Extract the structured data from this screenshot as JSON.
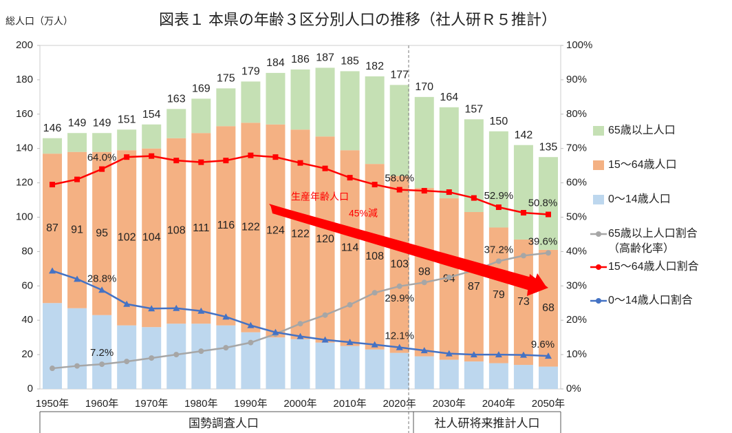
{
  "chart_data": {
    "type": "bar",
    "title": "図表１ 本県の年齢３区分別人口の推移（社人研Ｒ５推計）",
    "y_axis_label": "総人口（万人）",
    "categories": [
      "1950年",
      null,
      "1960年",
      null,
      "1970年",
      null,
      "1980年",
      null,
      "1990年",
      null,
      "2000年",
      null,
      "2010年",
      null,
      "2020年",
      null,
      "2030年",
      null,
      "2040年",
      null,
      "2050年"
    ],
    "totals": [
      146,
      149,
      149,
      151,
      154,
      163,
      169,
      175,
      179,
      184,
      186,
      187,
      185,
      182,
      177,
      170,
      164,
      157,
      150,
      142,
      135
    ],
    "series": [
      {
        "name": "0～14歳人口",
        "color": "#bdd7ee",
        "values": [
          50,
          47,
          43,
          37,
          36,
          38,
          38,
          37,
          33,
          30,
          29,
          27,
          25,
          23,
          21,
          19,
          17,
          16,
          15,
          14,
          13
        ]
      },
      {
        "name": "15～64歳人口",
        "color": "#f4b183",
        "values": [
          87,
          91,
          95,
          102,
          104,
          108,
          111,
          116,
          122,
          124,
          122,
          120,
          114,
          108,
          103,
          98,
          94,
          87,
          79,
          73,
          68
        ]
      },
      {
        "name": "65歳以上人口",
        "color": "#c5e0b4",
        "values": [
          9,
          11,
          11,
          12,
          14,
          17,
          20,
          22,
          24,
          30,
          35,
          40,
          46,
          51,
          53,
          53,
          53,
          54,
          56,
          55,
          54
        ]
      },
      {
        "name": "65歳以上人口割合",
        "legend_note": "（高齢化率）",
        "type": "line",
        "axis": "y2",
        "color": "#a6a6a6",
        "marker": "circle",
        "values": [
          6,
          6.7,
          7.2,
          8,
          9,
          10,
          11,
          12,
          13.5,
          16,
          19,
          21.5,
          24.5,
          28,
          29.9,
          31,
          32.5,
          34.5,
          37.2,
          38.8,
          39.6
        ],
        "value_labels": [
          null,
          null,
          "7.2%",
          null,
          null,
          null,
          null,
          null,
          null,
          null,
          null,
          null,
          null,
          null,
          "29.9%",
          null,
          null,
          null,
          "37.2%",
          null,
          "39.6%"
        ]
      },
      {
        "name": "15～64歳人口割合",
        "type": "line",
        "axis": "y2",
        "color": "#ff0000",
        "marker": "square",
        "values": [
          59.5,
          61,
          64.0,
          67.5,
          67.8,
          66.5,
          66,
          66.5,
          68,
          67.5,
          65.8,
          64.2,
          61.5,
          59.5,
          58.0,
          57.7,
          57.3,
          55.6,
          52.9,
          51.3,
          50.8
        ],
        "value_labels": [
          null,
          null,
          "64.0%",
          null,
          null,
          null,
          null,
          null,
          null,
          null,
          null,
          null,
          null,
          null,
          "58.0%",
          null,
          null,
          null,
          "52.9%",
          null,
          "50.8%"
        ]
      },
      {
        "name": "0～14歳人口割合",
        "type": "line",
        "axis": "y2",
        "color": "#4472c4",
        "marker": "triangle",
        "values": [
          34.4,
          32,
          28.8,
          24.7,
          23.4,
          23.5,
          22.7,
          21,
          18.5,
          16.5,
          15.3,
          14.3,
          13.6,
          12.9,
          12.1,
          11.2,
          10.3,
          10,
          10,
          9.9,
          9.6
        ],
        "value_labels": [
          null,
          null,
          "28.8%",
          null,
          null,
          null,
          null,
          null,
          null,
          null,
          null,
          null,
          null,
          null,
          "12.1%",
          null,
          null,
          null,
          null,
          null,
          "9.6%"
        ]
      }
    ],
    "ylim": [
      0,
      200
    ],
    "yticks": [
      0,
      20,
      40,
      60,
      80,
      100,
      120,
      140,
      160,
      180,
      200
    ],
    "y2lim": [
      0,
      100
    ],
    "y2ticks": [
      {
        "value": 0,
        "label": "0%"
      },
      {
        "value": 10,
        "label": "10%"
      },
      {
        "value": 20,
        "label": "20%"
      },
      {
        "value": 30,
        "label": "30%"
      },
      {
        "value": 40,
        "label": "40%"
      },
      {
        "value": 50,
        "label": "50%"
      },
      {
        "value": 60,
        "label": "60%"
      },
      {
        "value": 70,
        "label": "70%"
      },
      {
        "value": 80,
        "label": "80%"
      },
      {
        "value": 90,
        "label": "90%"
      },
      {
        "value": 100,
        "label": "100%"
      }
    ],
    "annotations": [
      "生産年齢人口",
      "45%減"
    ],
    "periods": [
      "国勢調査人口",
      "社人研将来推計人口"
    ]
  }
}
